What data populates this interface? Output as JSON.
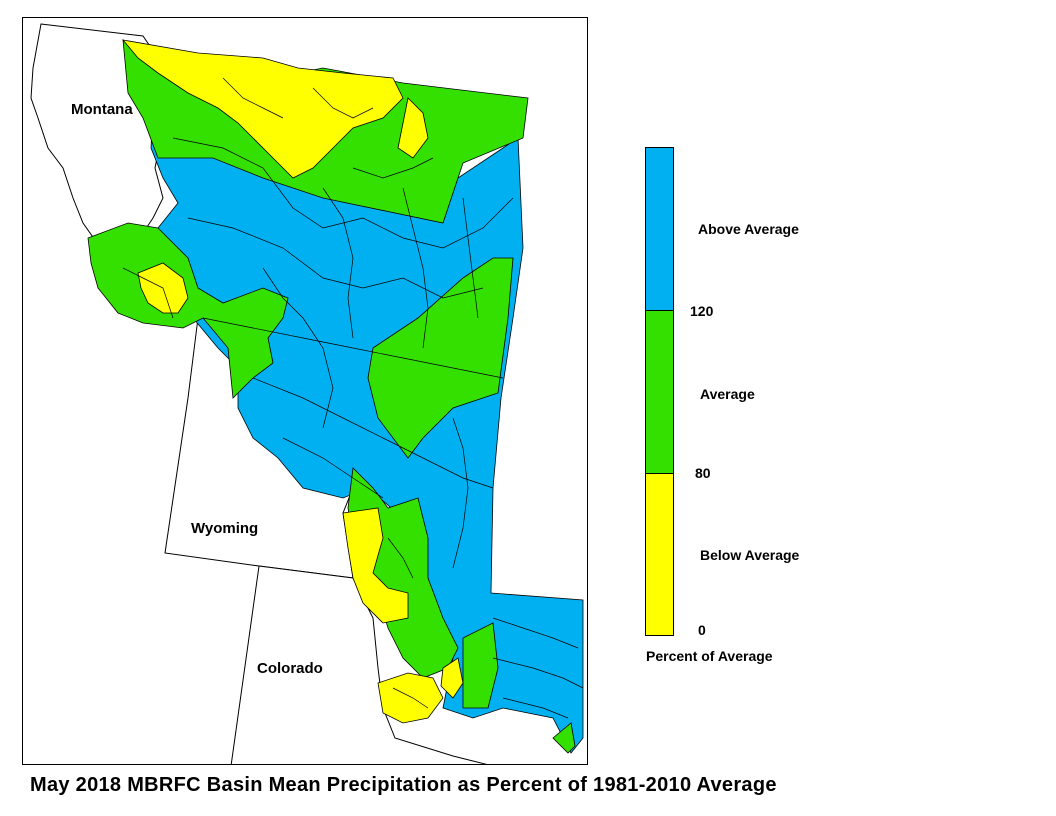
{
  "map": {
    "state_labels": {
      "montana": "Montana",
      "wyoming": "Wyoming",
      "colorado": "Colorado"
    },
    "colors": {
      "above": "#00B0F0",
      "average": "#33E000",
      "below": "#FFFF00",
      "outline": "#000000"
    }
  },
  "legend": {
    "categories": [
      {
        "label": "Above Average",
        "color": "#00B0F0",
        "range": [
          120,
          null
        ]
      },
      {
        "label": "Average",
        "color": "#33E000",
        "range": [
          80,
          120
        ]
      },
      {
        "label": "Below Average",
        "color": "#FFFF00",
        "range": [
          0,
          80
        ]
      }
    ],
    "ticks": [
      "120",
      "80",
      "0"
    ],
    "title": "Percent of Average"
  },
  "caption": "May 2018 MBRFC Basin Mean Precipitation as Percent of 1981-2010 Average"
}
